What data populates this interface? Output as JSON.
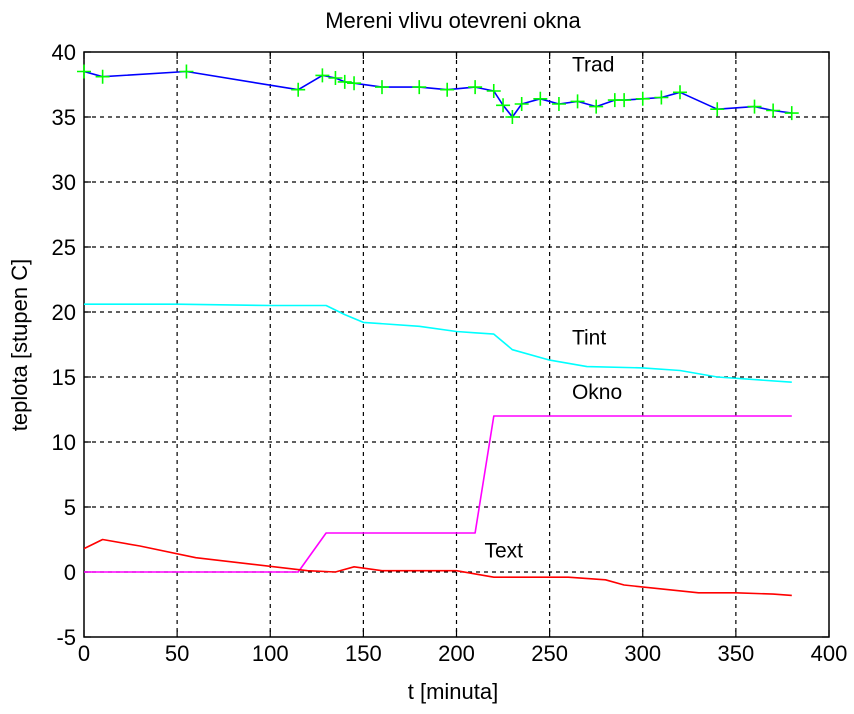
{
  "chart_data": {
    "type": "line",
    "title": "Mereni vlivu otevreni okna",
    "xlabel": "t [minuta]",
    "ylabel": "teplota [stupen C]",
    "xlim": [
      0,
      400
    ],
    "ylim": [
      -5,
      40
    ],
    "xticks": [
      0,
      50,
      100,
      150,
      200,
      250,
      300,
      350,
      400
    ],
    "yticks": [
      -5,
      0,
      5,
      10,
      15,
      20,
      25,
      30,
      35,
      40
    ],
    "grid": true,
    "grid_style": "dashed",
    "background": "#ffffff",
    "series": [
      {
        "name": "Trad",
        "color": "#0000ff",
        "marker": "plus",
        "marker_color": "#00ff00",
        "x": [
          0,
          10,
          55,
          115,
          128,
          135,
          140,
          145,
          160,
          180,
          195,
          210,
          220,
          225,
          230,
          235,
          245,
          255,
          265,
          275,
          285,
          290,
          300,
          310,
          320,
          340,
          360,
          370,
          380
        ],
        "y": [
          38.5,
          38.1,
          38.5,
          37.1,
          38.2,
          38.0,
          37.7,
          37.6,
          37.3,
          37.3,
          37.1,
          37.3,
          37.0,
          35.9,
          35.0,
          36.0,
          36.4,
          36.0,
          36.2,
          35.8,
          36.3,
          36.3,
          36.4,
          36.5,
          36.9,
          35.6,
          35.8,
          35.5,
          35.3
        ]
      },
      {
        "name": "Tint",
        "color": "#00ffff",
        "x": [
          0,
          50,
          100,
          130,
          140,
          150,
          180,
          200,
          210,
          220,
          230,
          250,
          270,
          300,
          320,
          340,
          360,
          380
        ],
        "y": [
          20.6,
          20.6,
          20.5,
          20.5,
          19.8,
          19.2,
          18.9,
          18.5,
          18.4,
          18.3,
          17.1,
          16.3,
          15.8,
          15.7,
          15.5,
          15.0,
          14.8,
          14.6
        ]
      },
      {
        "name": "Okno",
        "color": "#ff00ff",
        "x": [
          0,
          115,
          130,
          210,
          220,
          380
        ],
        "y": [
          0,
          0,
          3,
          3,
          12,
          12
        ]
      },
      {
        "name": "Text",
        "color": "#ff0000",
        "x": [
          0,
          10,
          30,
          60,
          90,
          120,
          135,
          145,
          160,
          180,
          200,
          220,
          240,
          260,
          280,
          290,
          310,
          330,
          350,
          370,
          380
        ],
        "y": [
          1.8,
          2.5,
          2.0,
          1.1,
          0.6,
          0.1,
          0.0,
          0.4,
          0.1,
          0.1,
          0.1,
          -0.4,
          -0.4,
          -0.4,
          -0.6,
          -1.0,
          -1.3,
          -1.6,
          -1.6,
          -1.7,
          -1.8
        ]
      }
    ],
    "annotations": [
      {
        "text": "Trad",
        "x": 262,
        "y": 38.5
      },
      {
        "text": "Tint",
        "x": 262,
        "y": 17.5
      },
      {
        "text": "Okno",
        "x": 262,
        "y": 13.3
      },
      {
        "text": "Text",
        "x": 215,
        "y": 1.1
      }
    ]
  }
}
